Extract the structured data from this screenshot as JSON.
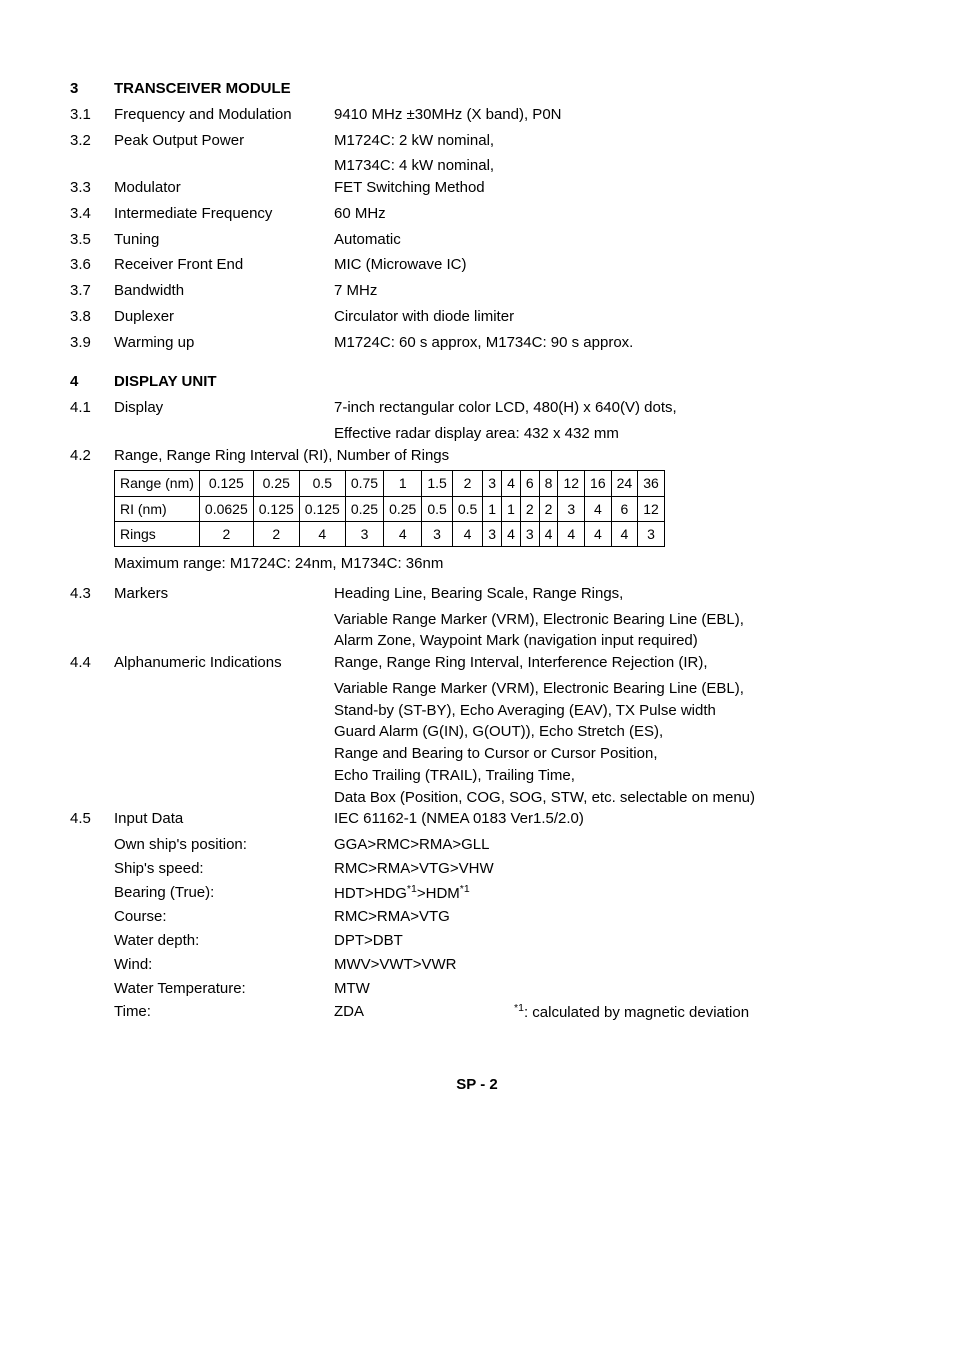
{
  "section3": {
    "num": "3",
    "title": "TRANSCEIVER MODULE",
    "items": [
      {
        "num": "3.1",
        "label": "Frequency and Modulation",
        "val": "9410 MHz ±30MHz (X band), P0N"
      },
      {
        "num": "3.2",
        "label": "Peak Output Power",
        "val": "M1724C: 2 kW nominal,",
        "val2": "M1734C: 4 kW nominal,"
      },
      {
        "num": "3.3",
        "label": "Modulator",
        "val": "FET Switching Method"
      },
      {
        "num": "3.4",
        "label": "Intermediate Frequency",
        "val": "60 MHz"
      },
      {
        "num": "3.5",
        "label": "Tuning",
        "val": "Automatic"
      },
      {
        "num": "3.6",
        "label": "Receiver Front End",
        "val": "MIC (Microwave IC)"
      },
      {
        "num": "3.7",
        "label": "Bandwidth",
        "val": "7 MHz"
      },
      {
        "num": "3.8",
        "label": "Duplexer",
        "val": "Circulator with diode limiter"
      },
      {
        "num": "3.9",
        "label": "Warming up",
        "val": "M1724C: 60 s approx, M1734C: 90 s approx."
      }
    ]
  },
  "section4": {
    "num": "4",
    "title": "DISPLAY UNIT",
    "r41": {
      "num": "4.1",
      "label": "Display",
      "val": "7-inch rectangular color LCD, 480(H) x 640(V) dots,",
      "val2": "Effective radar display area: 432 x 432 mm"
    },
    "r42": {
      "num": "4.2",
      "label": "Range, Range Ring Interval (RI), Number of Rings"
    },
    "table": {
      "headers": [
        "Range (nm)",
        "0.125",
        "0.25",
        "0.5",
        "0.75",
        "1",
        "1.5",
        "2",
        "3",
        "4",
        "6",
        "8",
        "12",
        "16",
        "24",
        "36"
      ],
      "row1": [
        "RI (nm)",
        "0.0625",
        "0.125",
        "0.125",
        "0.25",
        "0.25",
        "0.5",
        "0.5",
        "1",
        "1",
        "2",
        "2",
        "3",
        "4",
        "6",
        "12"
      ],
      "row2": [
        "Rings",
        "2",
        "2",
        "4",
        "3",
        "4",
        "3",
        "4",
        "3",
        "4",
        "3",
        "4",
        "4",
        "4",
        "4",
        "3"
      ],
      "border_color": "#000000",
      "cell_padding": "2px 5px",
      "font_size": 14
    },
    "maxrange": "Maximum range:  M1724C: 24nm, M1734C: 36nm",
    "r43": {
      "num": "4.3",
      "label": "Markers",
      "lines": [
        "Heading Line, Bearing Scale, Range Rings,",
        "Variable Range Marker (VRM), Electronic Bearing Line (EBL),",
        "Alarm Zone, Waypoint Mark (navigation input required)"
      ]
    },
    "r44": {
      "num": "4.4",
      "label": "Alphanumeric Indications",
      "first": "Range, Range Ring Interval, Interference Rejection (IR),",
      "lines": [
        "Variable Range Marker (VRM), Electronic Bearing Line (EBL),",
        "Stand-by (ST-BY), Echo Averaging (EAV), TX Pulse width",
        "Guard Alarm (G(IN), G(OUT)), Echo Stretch (ES),",
        "Range and Bearing to Cursor or Cursor Position,",
        "Echo Trailing (TRAIL), Trailing Time,",
        "Data Box (Position, COG, SOG, STW, etc. selectable on menu)"
      ]
    },
    "r45": {
      "num": "4.5",
      "label": "Input Data",
      "val": "IEC 61162-1 (NMEA 0183 Ver1.5/2.0)",
      "subs": [
        {
          "label": "Own ship's position:",
          "val": "GGA>RMC>RMA>GLL"
        },
        {
          "label": "Ship's speed:",
          "val": "RMC>RMA>VTG>VHW"
        },
        {
          "label": "Bearing (True):",
          "val_html": "HDT>HDG<sup>*1</sup>>HDM<sup>*1</sup>"
        },
        {
          "label": "Course:",
          "val": "RMC>RMA>VTG"
        },
        {
          "label": "Water depth:",
          "val": "DPT>DBT"
        },
        {
          "label": "Wind:",
          "val": "MWV>VWT>VWR"
        },
        {
          "label": "Water Temperature:",
          "val": "MTW"
        }
      ],
      "time_label": "Time:",
      "time_val": "ZDA",
      "time_note_html": "<sup>*1</sup>: calculated by magnetic deviation"
    }
  },
  "footer": "SP - 2"
}
